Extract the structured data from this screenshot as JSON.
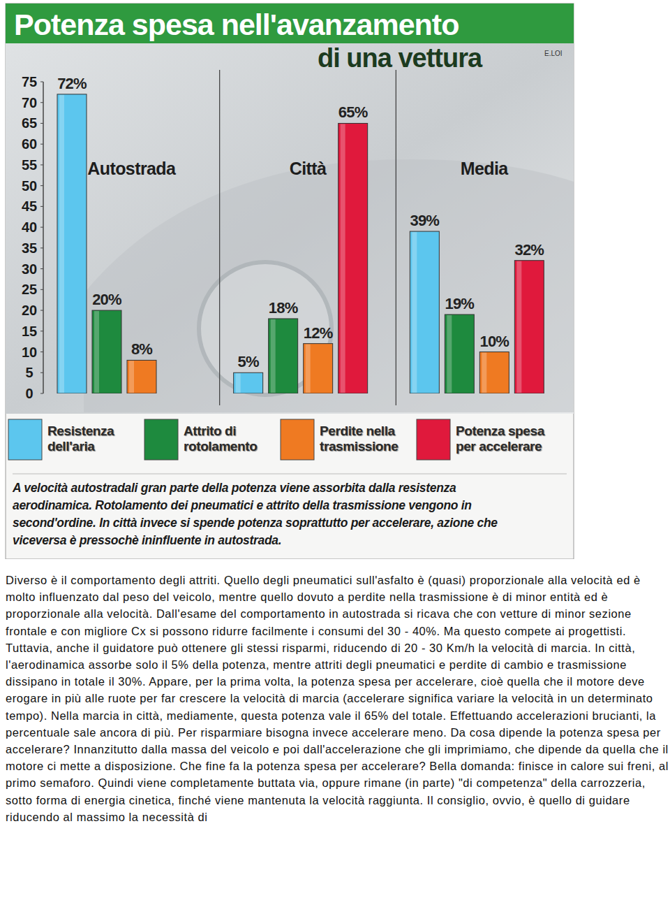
{
  "chart_data": {
    "type": "bar",
    "title": "Potenza spesa nell'avanzamento",
    "subtitle": "di una vettura",
    "annotations": [
      "E.LOI"
    ],
    "categories": [
      "Autostrada",
      "Città",
      "Media"
    ],
    "series": [
      {
        "name": "Resistenza dell'aria",
        "color": "#5cc6ee",
        "values": [
          72,
          5,
          39
        ],
        "value_labels": [
          "72%",
          "5%",
          "39%"
        ]
      },
      {
        "name": "Attrito di rotolamento",
        "color": "#1e8a3e",
        "values": [
          20,
          18,
          19
        ],
        "value_labels": [
          "20%",
          "18%",
          "19%"
        ]
      },
      {
        "name": "Perdite nella trasmissione",
        "color": "#ef7a22",
        "values": [
          8,
          12,
          10
        ],
        "value_labels": [
          "8%",
          "12%",
          "10%"
        ]
      },
      {
        "name": "Potenza spesa per accelerare",
        "color": "#e0193c",
        "values": [
          null,
          65,
          32
        ],
        "value_labels": [
          null,
          "65%",
          "32%"
        ]
      }
    ],
    "ylim": [
      0,
      75
    ],
    "yticks": [
      0,
      5,
      10,
      15,
      20,
      25,
      30,
      35,
      40,
      45,
      50,
      55,
      60,
      65,
      70,
      75
    ],
    "grid": false,
    "legend": "bottom",
    "data_labels": true
  },
  "caption": "A velocità autostradali gran parte della potenza viene assorbita dalla resistenza aerodinamica. Rotolamento dei pneumatici e attrito della trasmissione vengono in second'ordine. In città invece si spende potenza soprattutto per accelerare, azione che viceversa è pressochè ininfluente in autostrada.",
  "body": "Diverso è il comportamento degli attriti. Quello degli pneumatici sull'asfalto è (quasi) proporzionale alla velocità ed è molto influenzato dal peso del veicolo, mentre quello dovuto a perdite nella trasmissione è di minor entità ed è proporzionale alla velocità. Dall'esame del comportamento in autostrada si ricava che con vetture di minor sezione frontale e con migliore Cx si possono ridurre facilmente i consumi del 30 - 40%. Ma questo compete ai progettisti. Tuttavia, anche il guidatore può ottenere gli stessi risparmi, riducendo di 20 - 30 Km/h la velocità di marcia. In città, l'aerodinamica assorbe solo il 5% della potenza, mentre attriti degli pneumatici e perdite di cambio e trasmissione dissipano in totale il 30%. Appare, per la prima volta, la potenza spesa per accelerare, cioè quella che il motore deve erogare in più alle ruote per far crescere la velocità di marcia (accelerare significa variare la velocità in un determinato tempo). Nella marcia in città, mediamente, questa potenza vale il 65% del totale. Effettuando accelerazioni brucianti, la percentuale sale ancora di più. Per risparmiare bisogna invece accelerare meno. Da cosa dipende la potenza spesa per accelerare? Innanzitutto dalla massa del veicolo e poi dall'accelerazione che gli imprimiamo, che dipende da quella che il motore ci mette a disposizione. Che fine fa la potenza spesa per accelerare? Bella domanda: finisce in calore sui freni, al primo semaforo. Quindi viene completamente buttata via, oppure rimane (in parte) \"di competenza\" della carrozzeria, sotto forma di energia cinetica, finché viene mantenuta la velocità raggiunta. Il consiglio, ovvio, è quello di guidare riducendo al massimo la necessità di"
}
